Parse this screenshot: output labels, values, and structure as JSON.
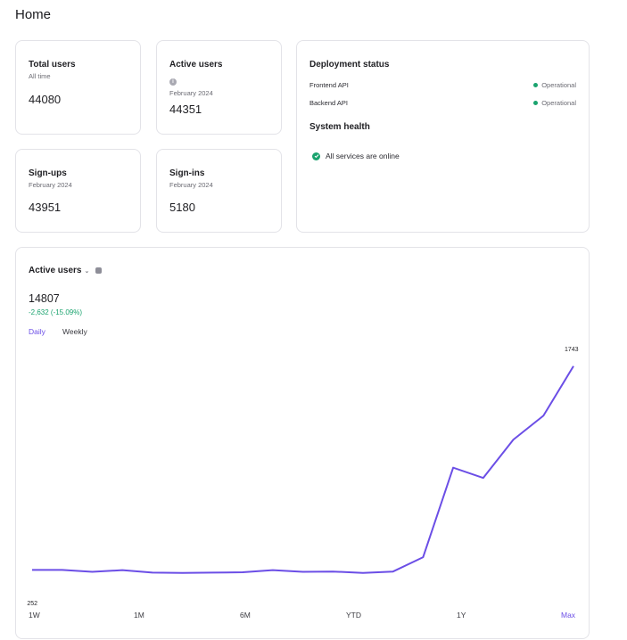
{
  "page": {
    "title": "Home"
  },
  "stats": [
    {
      "title": "Total users",
      "subtitle": "All time",
      "value": "44080"
    },
    {
      "title": "Active users",
      "subtitle": "February 2024",
      "value": "44351"
    },
    {
      "title": "Sign-ups",
      "subtitle": "February 2024",
      "value": "43951"
    },
    {
      "title": "Sign-ins",
      "subtitle": "February 2024",
      "value": "5180"
    }
  ],
  "deployment": {
    "title": "Deployment status",
    "services": [
      {
        "name": "Frontend API",
        "status": "Operational"
      },
      {
        "name": "Backend API",
        "status": "Operational"
      }
    ],
    "health_title": "System health",
    "health_text": "All services are online"
  },
  "active_chart": {
    "title": "Active users",
    "value": "14807",
    "delta": "-2,632 (-15.09%)",
    "toggles": {
      "daily": "Daily",
      "weekly": "Weekly"
    },
    "ranges": [
      "1W",
      "1M",
      "6M",
      "YTD",
      "1Y",
      "Max"
    ],
    "first_label": "252",
    "last_label": "1743"
  },
  "chart_data": {
    "type": "line",
    "title": "Active users",
    "series": [
      {
        "name": "Active users",
        "color": "#6b4ee6",
        "values": [
          252,
          252,
          238,
          250,
          232,
          230,
          232,
          235,
          250,
          238,
          240,
          230,
          240,
          345,
          1000,
          925,
          1205,
          1380,
          1743
        ]
      }
    ],
    "ylim": [
      0,
      1800
    ],
    "xlabel": "",
    "ylabel": ""
  },
  "colors": {
    "accent": "#6b4ee6",
    "success": "#1aa36e",
    "border": "#e3e3e8"
  }
}
